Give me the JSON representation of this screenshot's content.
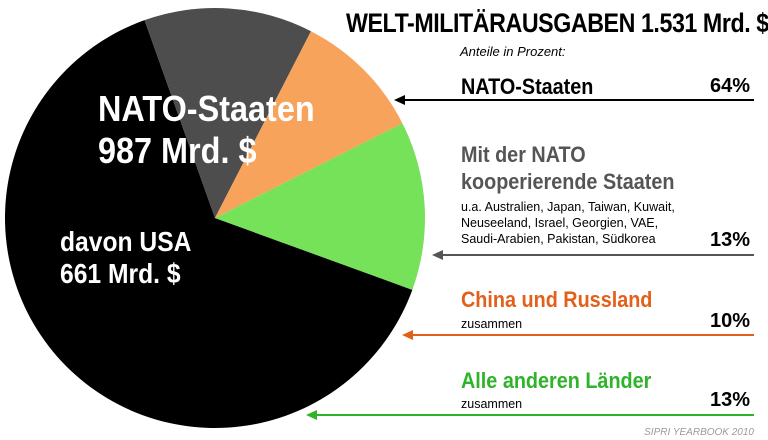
{
  "header": {
    "title": "WELT-MILITÄRAUSGABEN 1.531 Mrd. $",
    "subtitle": "Anteile in Prozent:"
  },
  "pie_labels": {
    "nato_name": "NATO-Staaten",
    "nato_amount": "987 Mrd. $",
    "usa_name": "davon USA",
    "usa_amount": "661 Mrd. $"
  },
  "legend": {
    "nato": {
      "name": "NATO-Staaten",
      "pct": "64%"
    },
    "partners": {
      "name_line1": "Mit der NATO",
      "name_line2": "kooperierende Staaten",
      "detail": [
        "u.a. Australien, Japan, Taiwan, Kuwait,",
        "Neuseeland, Israel, Georgien, VAE,",
        "Saudi-Arabien, Pakistan, Südkorea"
      ],
      "pct": "13%"
    },
    "china_russia": {
      "name": "China und Russland",
      "note": "zusammen",
      "pct": "10%"
    },
    "others": {
      "name": "Alle anderen Länder",
      "note": "zusammen",
      "pct": "13%"
    }
  },
  "source": "SIPRI YEARBOOK 2010",
  "chart_data": {
    "type": "pie",
    "title": "WELT-MILITÄRAUSGABEN 1.531 Mrd. $",
    "subtitle": "Anteile in Prozent:",
    "slices": [
      {
        "label": "NATO-Staaten",
        "value": 64,
        "color": "#000000"
      },
      {
        "label": "Mit der NATO kooperierende Staaten",
        "value": 13,
        "color": "#4d4d4d"
      },
      {
        "label": "China und Russland",
        "value": 10,
        "color": "#f7a35c"
      },
      {
        "label": "Alle anderen Länder",
        "value": 13,
        "color": "#76e25a"
      }
    ],
    "annotations": [
      "987 Mrd. $",
      "davon USA",
      "661 Mrd. $"
    ]
  },
  "colors": {
    "nato": "#000000",
    "partners": "#4d4d4d",
    "china_russia": "#f7a35c",
    "others": "#76e25a",
    "partners_text": "#555555",
    "china_russia_text": "#e2601a",
    "others_text": "#2fb32a"
  }
}
